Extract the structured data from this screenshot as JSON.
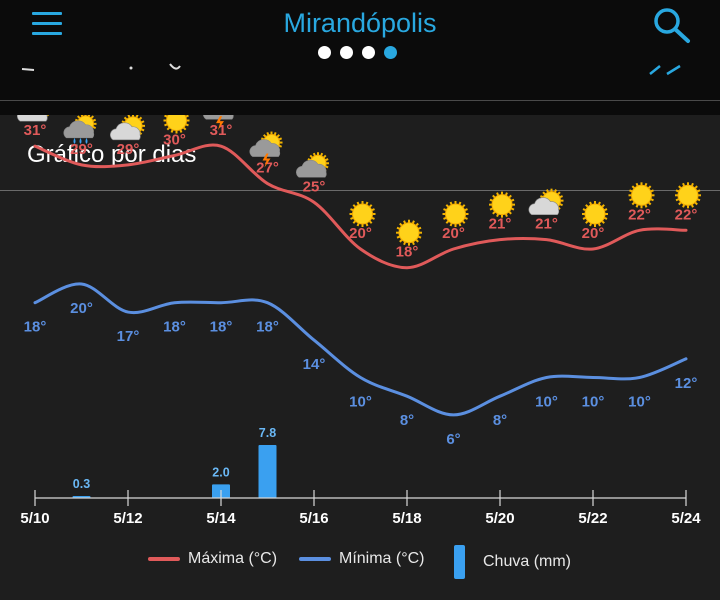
{
  "header": {
    "city": "Mirandópolis",
    "page_dots": 4,
    "active_dot": 3
  },
  "colors": {
    "accent": "#29a8e0",
    "max": "#e05a5a",
    "min": "#5b8fe0",
    "rain": "#3aa0f0",
    "card": "#1e1e1e"
  },
  "card": {
    "title": "Gráfico por dias"
  },
  "chart_data": {
    "type": "line",
    "dates": [
      "5/10",
      "5/11",
      "5/12",
      "5/13",
      "5/14",
      "5/15",
      "5/16",
      "5/17",
      "5/18",
      "5/19",
      "5/20",
      "5/21",
      "5/22",
      "5/23",
      "5/24"
    ],
    "icons": [
      "partly-cloudy",
      "rain",
      "partly-cloudy",
      "sun",
      "storm",
      "storm",
      "cloudy",
      "sun",
      "sun",
      "sun",
      "sun",
      "partly-cloudy",
      "sun",
      "sun",
      "sun"
    ],
    "series": [
      {
        "name": "Máxima (°C)",
        "values": [
          31,
          29,
          29,
          30,
          31,
          27,
          25,
          20,
          18,
          20,
          21,
          21,
          20,
          22,
          22
        ],
        "labels": [
          "31°",
          "29°",
          "29°",
          "30°",
          "31°",
          "27°",
          "25°",
          "20°",
          "18°",
          "20°",
          "21°",
          "21°",
          "20°",
          "22°",
          "22°"
        ]
      },
      {
        "name": "Mínima (°C)",
        "values": [
          18,
          20,
          17,
          18,
          18,
          18,
          14,
          10,
          8,
          6,
          8,
          10,
          10,
          10,
          12
        ],
        "labels": [
          "18°",
          "20°",
          "17°",
          "18°",
          "18°",
          "18°",
          "14°",
          "10°",
          "8°",
          "6°",
          "8°",
          "10°",
          "10°",
          "10°",
          "12°"
        ]
      }
    ],
    "rain": {
      "name": "Chuva (mm)",
      "values": [
        0,
        0.3,
        0,
        0,
        2.0,
        7.8,
        0,
        0,
        0,
        0,
        0,
        0,
        0,
        0,
        0
      ],
      "labels": [
        "",
        "0.3",
        "",
        "",
        "2.0",
        "7.8",
        "",
        "",
        "",
        "",
        "",
        "",
        "",
        "",
        ""
      ]
    },
    "x_tick_labels": [
      "5/10",
      "5/12",
      "5/14",
      "5/16",
      "5/18",
      "5/20",
      "5/22",
      "5/24"
    ]
  },
  "legend": {
    "max": "Máxima (°C)",
    "min": "Mínima (°C)",
    "rain": "Chuva (mm)"
  }
}
